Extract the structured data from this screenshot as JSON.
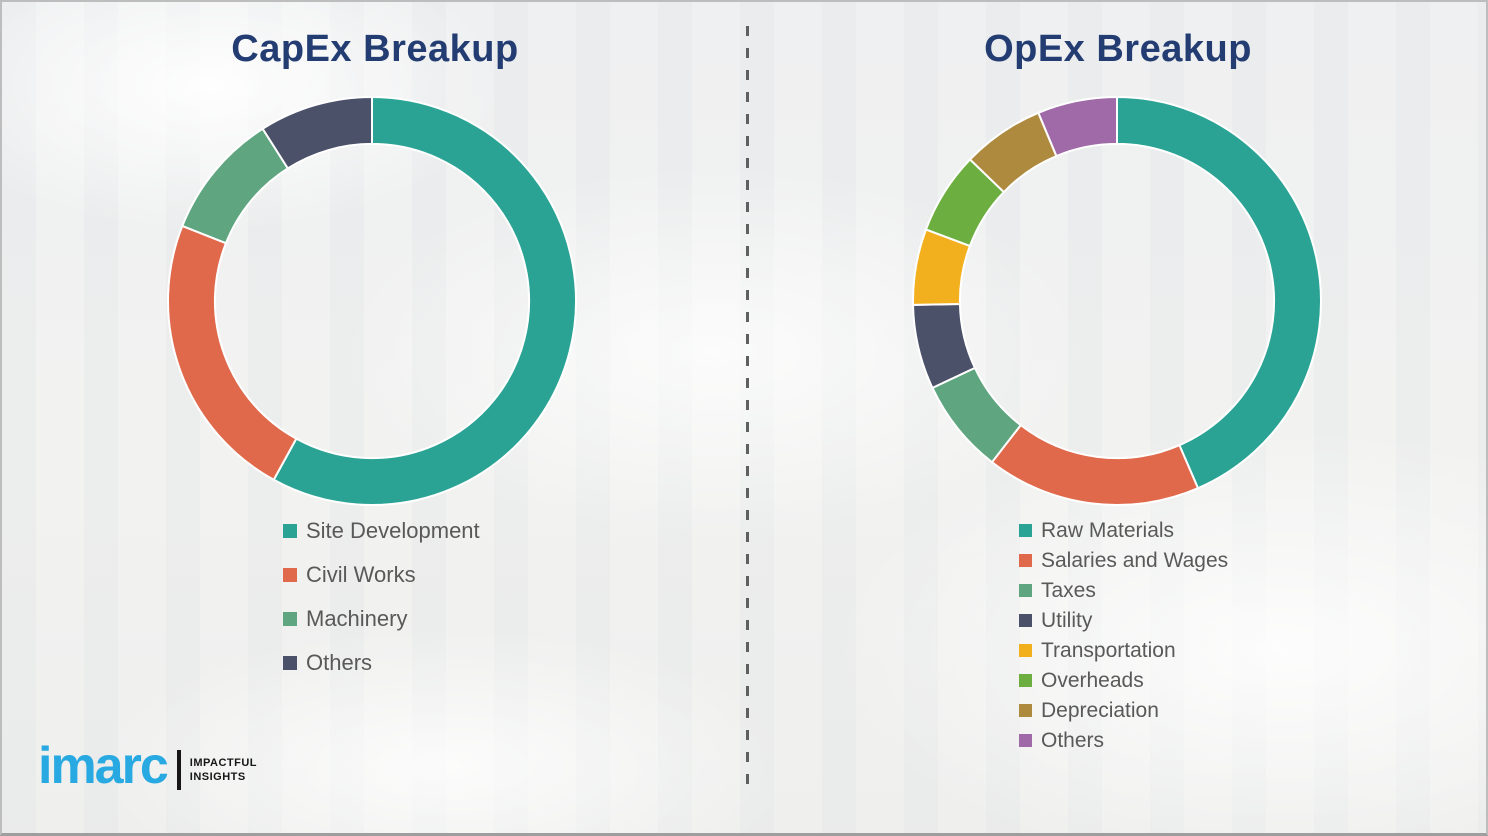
{
  "chart_data": [
    {
      "type": "pie",
      "subtype": "donut",
      "title": "CapEx Breakup",
      "labels": [
        "Site Development",
        "Civil Works",
        "Machinery",
        "Others"
      ],
      "values": [
        58,
        23,
        10,
        9
      ],
      "unit": "percent (estimated from arc angles; no data labels shown)",
      "colors": [
        "#2AA394",
        "#E0694B",
        "#5FA57F",
        "#4B5169"
      ],
      "start_angle_deg": 0,
      "direction": "clockwise",
      "hole_ratio": 0.77,
      "legend_position": "below-left"
    },
    {
      "type": "pie",
      "subtype": "donut",
      "title": "OpEx Breakup",
      "labels": [
        "Raw Materials",
        "Salaries and Wages",
        "Taxes",
        "Utility",
        "Transportation",
        "Overheads",
        "Depreciation",
        "Others"
      ],
      "values": [
        43.5,
        17,
        7.5,
        6.7,
        6,
        6.5,
        6.5,
        6.3
      ],
      "unit": "percent (estimated from arc angles; no data labels shown)",
      "colors": [
        "#2AA394",
        "#E0694B",
        "#5FA57F",
        "#4B5169",
        "#F2B01F",
        "#6CAE3F",
        "#AE8A3E",
        "#9F6AA7"
      ],
      "start_angle_deg": 0,
      "direction": "clockwise",
      "hole_ratio": 0.77,
      "legend_position": "below-left"
    }
  ],
  "logo": {
    "brand": "imarc",
    "tagline_line1": "IMPACTFUL",
    "tagline_line2": "INSIGHTS"
  },
  "colors": {
    "title_text": "#233D73",
    "legend_text": "#595959",
    "logo_blue": "#29A9E1",
    "divider": "#5F5F5F",
    "background": "#F1F2F2",
    "segment_gap": "#FFFFFF"
  }
}
